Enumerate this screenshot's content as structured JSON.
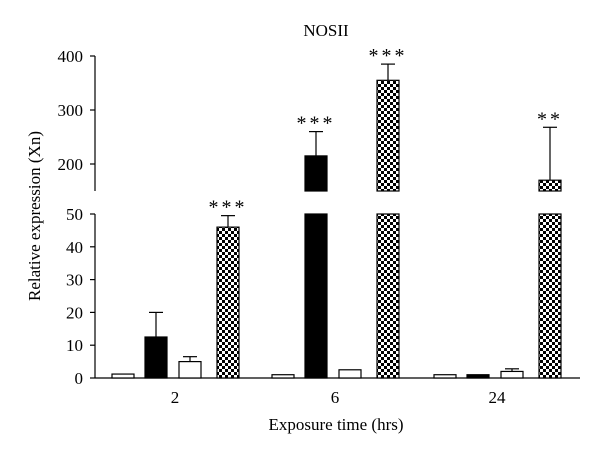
{
  "chart_data": {
    "type": "bar",
    "title": "NOSII",
    "xlabel": "Exposure time (hrs)",
    "ylabel": "Relative expression (Xn)",
    "y_axis": {
      "broken": true,
      "lower_range": [
        0,
        50
      ],
      "upper_range": [
        150,
        400
      ],
      "lower_ticks": [
        "0",
        "10",
        "20",
        "30",
        "40",
        "50"
      ],
      "upper_ticks": [
        "200",
        "300",
        "400"
      ]
    },
    "categories": [
      "2",
      "6",
      "24"
    ],
    "series": [
      {
        "fill": "white-small",
        "values": [
          1.2,
          1.0,
          1.0
        ],
        "errors": [
          0,
          0,
          0
        ]
      },
      {
        "fill": "black",
        "values": [
          12.5,
          215,
          1.0
        ],
        "errors": [
          7.5,
          45,
          0
        ]
      },
      {
        "fill": "white",
        "values": [
          5.0,
          2.5,
          2.0
        ],
        "errors": [
          1.5,
          0,
          0.8
        ]
      },
      {
        "fill": "checkered",
        "values": [
          46,
          355,
          170
        ],
        "errors": [
          3.5,
          30,
          98
        ]
      }
    ],
    "annotations": [
      {
        "category": "2",
        "series": 4,
        "text": "***"
      },
      {
        "category": "6",
        "series": 2,
        "text": "***"
      },
      {
        "category": "6",
        "series": 4,
        "text": "***"
      },
      {
        "category": "24",
        "series": 4,
        "text": "**"
      }
    ],
    "colors": {
      "black": "#000000",
      "white": "#ffffff"
    }
  }
}
